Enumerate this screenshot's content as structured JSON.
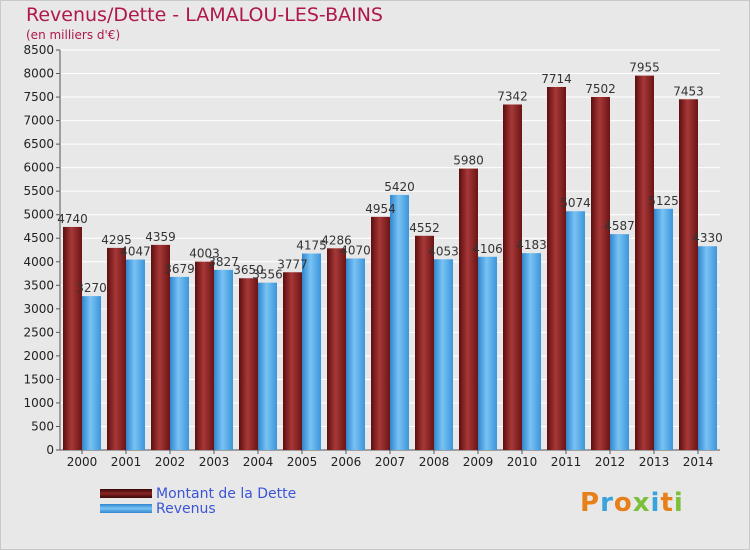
{
  "title": "Revenus/Dette - LAMALOU-LES-BAINS",
  "subtitle": "(en milliers d'€)",
  "logo_text": "Proxiti",
  "colors": {
    "dette": "#7a1a1a",
    "dette_light": "#a83838",
    "revenus": "#4aa6e8",
    "revenus_light": "#79c3f4",
    "grid": "#ffffff",
    "background": "#e8e8e8",
    "title": "#b0174a"
  },
  "chart_data": {
    "type": "bar",
    "title": "Revenus/Dette - LAMALOU-LES-BAINS",
    "subtitle": "(en milliers d'€)",
    "categories": [
      "2000",
      "2001",
      "2002",
      "2003",
      "2004",
      "2005",
      "2006",
      "2007",
      "2008",
      "2009",
      "2010",
      "2011",
      "2012",
      "2013",
      "2014"
    ],
    "series": [
      {
        "name": "Montant de la Dette",
        "values": [
          4740,
          4295,
          4359,
          4003,
          3650,
          3777,
          4286,
          4954,
          4552,
          5980,
          7342,
          7714,
          7502,
          7955,
          7453
        ]
      },
      {
        "name": "Revenus",
        "values": [
          3270,
          4047,
          3679,
          3827,
          3556,
          4175,
          4070,
          5420,
          4053,
          4106,
          4183,
          5074,
          4587,
          5125,
          4330
        ]
      }
    ],
    "yticks": [
      0,
      500,
      1000,
      1500,
      2000,
      2500,
      3000,
      3500,
      4000,
      4500,
      5000,
      5500,
      6000,
      6500,
      7000,
      7500,
      8000,
      8500
    ],
    "ylim": [
      0,
      8500
    ],
    "grid": true,
    "legend_position": "bottom-left"
  }
}
